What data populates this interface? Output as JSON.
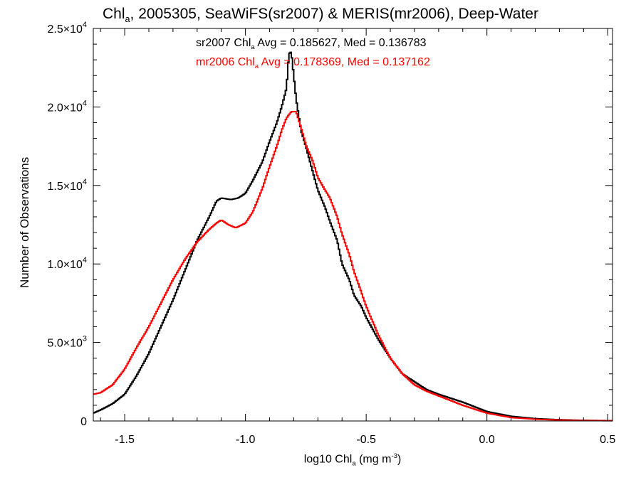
{
  "title": {
    "prefix": "Chl",
    "sub": "a",
    "rest": ", 2005305, SeaWiFS(sr2007) & MERIS(mr2006), Deep-Water"
  },
  "annotations": [
    {
      "pre": "sr2007 Chl",
      "sub": "a",
      "post": " Avg = 0.185627, Med = 0.136783",
      "color": "#000000"
    },
    {
      "pre": "mr2006 Chl",
      "sub": "a",
      "post": " Avg = 0.178369, Med = 0.137162",
      "color": "#ff0000"
    }
  ],
  "axes": {
    "ylabel": "Number of Observations",
    "xlabel": {
      "pre": "log10 Chl",
      "sub": "a",
      "mid": " (mg m",
      "sup": "-3",
      "post": ")"
    }
  },
  "chart_data": {
    "type": "line",
    "style": "step histogram",
    "title": "Chla, 2005305, SeaWiFS(sr2007) & MERIS(mr2006), Deep-Water",
    "xlabel": "log10 Chla (mg m-3)",
    "ylabel": "Number of Observations",
    "xlim": [
      -1.63,
      0.52
    ],
    "ylim": [
      0,
      25000
    ],
    "x_ticks": [
      -1.5,
      -1.0,
      -0.5,
      0.0,
      0.5
    ],
    "x_tick_labels": [
      "-1.5",
      "-1.0",
      "-0.5",
      "0.0",
      "0.5"
    ],
    "y_ticks": [
      0,
      5000,
      10000,
      15000,
      20000,
      25000
    ],
    "y_tick_labels": [
      {
        "mant": "0",
        "exp": ""
      },
      {
        "mant": "5.0×10",
        "exp": "3"
      },
      {
        "mant": "1.0×10",
        "exp": "4"
      },
      {
        "mant": "1.5×10",
        "exp": "4"
      },
      {
        "mant": "2.0×10",
        "exp": "4"
      },
      {
        "mant": "2.5×10",
        "exp": "4"
      }
    ],
    "series": [
      {
        "name": "sr2007",
        "color": "#000000",
        "points": [
          [
            -1.63,
            500
          ],
          [
            -1.6,
            700
          ],
          [
            -1.55,
            1100
          ],
          [
            -1.5,
            1700
          ],
          [
            -1.45,
            2900
          ],
          [
            -1.4,
            4300
          ],
          [
            -1.35,
            6000
          ],
          [
            -1.3,
            7700
          ],
          [
            -1.25,
            9600
          ],
          [
            -1.2,
            11500
          ],
          [
            -1.15,
            13000
          ],
          [
            -1.12,
            14000
          ],
          [
            -1.1,
            14200
          ],
          [
            -1.06,
            14100
          ],
          [
            -1.03,
            14200
          ],
          [
            -1.0,
            14500
          ],
          [
            -0.97,
            15300
          ],
          [
            -0.93,
            16500
          ],
          [
            -0.9,
            17800
          ],
          [
            -0.87,
            19000
          ],
          [
            -0.85,
            20000
          ],
          [
            -0.83,
            21200
          ],
          [
            -0.82,
            23400
          ],
          [
            -0.81,
            23500
          ],
          [
            -0.8,
            22000
          ],
          [
            -0.79,
            20500
          ],
          [
            -0.77,
            18500
          ],
          [
            -0.75,
            17500
          ],
          [
            -0.72,
            15800
          ],
          [
            -0.7,
            14700
          ],
          [
            -0.67,
            13600
          ],
          [
            -0.65,
            12700
          ],
          [
            -0.62,
            11500
          ],
          [
            -0.6,
            10000
          ],
          [
            -0.57,
            9000
          ],
          [
            -0.55,
            8000
          ],
          [
            -0.52,
            7300
          ],
          [
            -0.5,
            6600
          ],
          [
            -0.45,
            5200
          ],
          [
            -0.4,
            4000
          ],
          [
            -0.35,
            3000
          ],
          [
            -0.3,
            2500
          ],
          [
            -0.25,
            2000
          ],
          [
            -0.2,
            1700
          ],
          [
            -0.1,
            1200
          ],
          [
            0.0,
            600
          ],
          [
            0.1,
            300
          ],
          [
            0.2,
            150
          ],
          [
            0.3,
            80
          ],
          [
            0.4,
            40
          ],
          [
            0.52,
            20
          ]
        ]
      },
      {
        "name": "mr2006",
        "color": "#ff0000",
        "points": [
          [
            -1.63,
            1700
          ],
          [
            -1.6,
            1800
          ],
          [
            -1.55,
            2300
          ],
          [
            -1.5,
            3300
          ],
          [
            -1.45,
            4700
          ],
          [
            -1.4,
            6000
          ],
          [
            -1.35,
            7500
          ],
          [
            -1.3,
            9000
          ],
          [
            -1.25,
            10300
          ],
          [
            -1.2,
            11400
          ],
          [
            -1.15,
            12200
          ],
          [
            -1.12,
            12600
          ],
          [
            -1.1,
            12800
          ],
          [
            -1.07,
            12500
          ],
          [
            -1.04,
            12300
          ],
          [
            -1.0,
            12600
          ],
          [
            -0.97,
            13300
          ],
          [
            -0.93,
            14800
          ],
          [
            -0.9,
            16200
          ],
          [
            -0.87,
            17500
          ],
          [
            -0.85,
            18500
          ],
          [
            -0.83,
            19300
          ],
          [
            -0.81,
            19700
          ],
          [
            -0.79,
            19700
          ],
          [
            -0.77,
            18700
          ],
          [
            -0.75,
            17600
          ],
          [
            -0.72,
            16500
          ],
          [
            -0.7,
            15500
          ],
          [
            -0.67,
            14700
          ],
          [
            -0.65,
            14200
          ],
          [
            -0.62,
            13000
          ],
          [
            -0.6,
            11900
          ],
          [
            -0.57,
            10600
          ],
          [
            -0.55,
            9500
          ],
          [
            -0.52,
            8200
          ],
          [
            -0.5,
            7300
          ],
          [
            -0.45,
            5500
          ],
          [
            -0.4,
            4000
          ],
          [
            -0.35,
            3000
          ],
          [
            -0.3,
            2300
          ],
          [
            -0.25,
            1900
          ],
          [
            -0.2,
            1600
          ],
          [
            -0.1,
            1000
          ],
          [
            0.0,
            500
          ],
          [
            0.1,
            220
          ],
          [
            0.2,
            110
          ],
          [
            0.3,
            60
          ],
          [
            0.4,
            30
          ],
          [
            0.52,
            15
          ]
        ]
      }
    ]
  }
}
